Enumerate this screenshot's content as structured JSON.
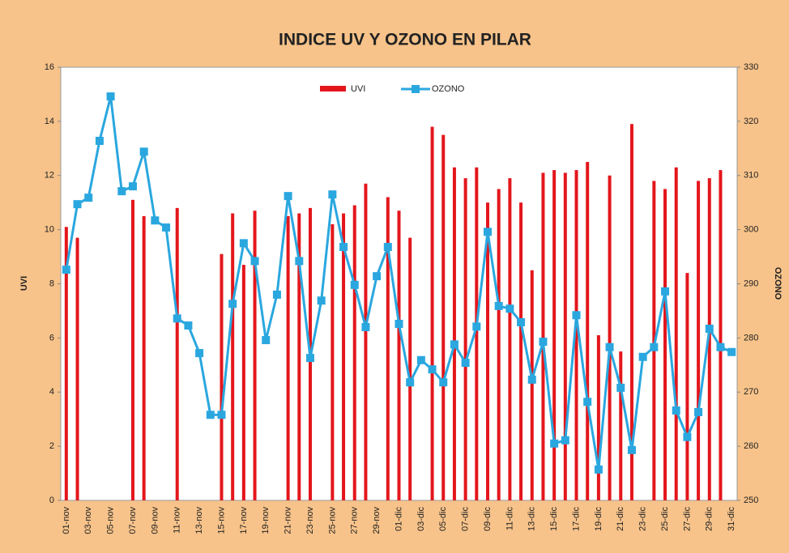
{
  "chart_data": {
    "type": "bar_line",
    "title": "INDICE UV Y OZONO EN PILAR",
    "y_label": "UVI",
    "y2_label": "OZONO",
    "categories": [
      "01-nov",
      null,
      "03-nov",
      null,
      "05-nov",
      null,
      "07-nov",
      null,
      "09-nov",
      null,
      "11-nov",
      null,
      "13-nov",
      null,
      "15-nov",
      null,
      "17-nov",
      null,
      "19-nov",
      null,
      "21-nov",
      null,
      "23-nov",
      null,
      "25-nov",
      null,
      "27-nov",
      null,
      "29-nov",
      null,
      "01-dic",
      null,
      "03-dic",
      null,
      "05-dic",
      null,
      "07-dic",
      null,
      "09-dic",
      null,
      "11-dic",
      null,
      "13-dic",
      null,
      "15-dic",
      null,
      "17-dic",
      null,
      "19-dic",
      null,
      "21-dic",
      null,
      "23-dic",
      null,
      "25-dic",
      null,
      "27-dic",
      null,
      "29-dic",
      null,
      "31-dic"
    ],
    "series": [
      {
        "name": "UVI",
        "type": "bar",
        "color": "#e3161c",
        "values": [
          10.1,
          9.7,
          null,
          null,
          null,
          null,
          11.1,
          10.5,
          null,
          null,
          10.8,
          null,
          null,
          null,
          9.1,
          10.6,
          8.7,
          10.7,
          null,
          null,
          10.5,
          10.6,
          10.8,
          null,
          10.2,
          10.6,
          10.9,
          11.7,
          null,
          11.2,
          10.7,
          9.7,
          null,
          13.8,
          13.5,
          12.3,
          11.9,
          12.3,
          11.0,
          11.5,
          11.9,
          11.0,
          8.5,
          12.1,
          12.2,
          12.1,
          12.2,
          12.5,
          6.1,
          12.0,
          5.5,
          13.9,
          null,
          11.8,
          11.5,
          12.3,
          8.4,
          11.8,
          11.9,
          12.2,
          null
        ]
      },
      {
        "name": "OZONO",
        "type": "line",
        "axis": "y2",
        "color": "#2aa7df",
        "values": [
          292.6,
          304.7,
          305.9,
          316.4,
          324.6,
          307.1,
          308,
          314.4,
          301.7,
          300.4,
          283.6,
          282.3,
          277.2,
          265.8,
          265.8,
          286.3,
          297.5,
          294.2,
          279.6,
          288,
          306.2,
          294.2,
          276.3,
          286.9,
          306.5,
          296.8,
          289.8,
          282,
          291.4,
          296.8,
          282.6,
          271.8,
          275.9,
          274.2,
          271.8,
          278.8,
          275.4,
          282.1,
          299.6,
          285.9,
          285.4,
          282.9,
          272.3,
          279.3,
          260.5,
          261.1,
          284.2,
          268.2,
          255.7,
          278.3,
          270.8,
          259.3,
          276.5,
          278.3,
          288.6,
          266.6,
          261.7,
          266.3,
          281.7,
          278.3,
          277.4
        ]
      }
    ],
    "ylim": [
      0,
      16
    ],
    "yticks": [
      0,
      2,
      4,
      6,
      8,
      10,
      12,
      14,
      16
    ],
    "y2lim": [
      250,
      330
    ],
    "y2ticks": [
      250,
      260,
      270,
      280,
      290,
      300,
      310,
      320,
      330
    ],
    "legend": "top"
  }
}
